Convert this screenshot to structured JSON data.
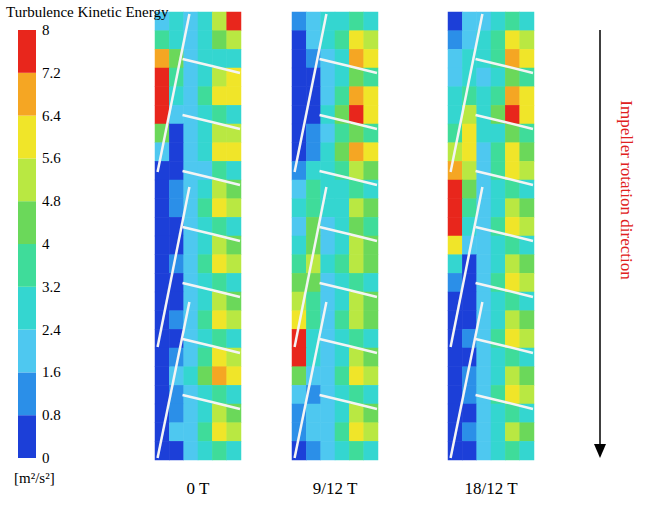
{
  "chart_data": {
    "type": "heatmap",
    "title": "Turbulence Kinetic Energy",
    "tick_labels": false,
    "annotation": "Impeller rotation direction",
    "colorbar": {
      "unit": "[m²/s²]",
      "range": [
        0,
        8
      ],
      "ticks": [
        0,
        0.8,
        1.6,
        2.4,
        3.2,
        4,
        4.8,
        5.6,
        6.4,
        7.2,
        8
      ],
      "colors": [
        "#1c3fd8",
        "#2b8fe8",
        "#4ec8f0",
        "#34d6d0",
        "#3fdc9a",
        "#6bd85a",
        "#b9e842",
        "#f0e529",
        "#f5a623",
        "#e8261c"
      ]
    },
    "panels": [
      {
        "label": "0 T",
        "cells": [
          [
            2.0,
            3.0,
            2.0,
            3.0,
            5.0,
            7.6
          ],
          [
            3.5,
            2.5,
            1.6,
            2.4,
            4.4,
            5.0
          ],
          [
            7.0,
            4.0,
            1.6,
            2.4,
            2.8,
            2.4
          ],
          [
            7.6,
            3.6,
            1.8,
            2.8,
            5.0,
            6.2
          ],
          [
            7.6,
            3.0,
            1.8,
            3.2,
            5.8,
            6.0
          ],
          [
            7.2,
            2.0,
            1.8,
            2.4,
            3.6,
            3.0
          ],
          [
            4.0,
            0.4,
            2.0,
            2.8,
            4.8,
            5.4
          ],
          [
            1.6,
            0.4,
            1.8,
            3.0,
            6.0,
            5.6
          ],
          [
            0.4,
            0.4,
            1.6,
            2.2,
            3.4,
            3.0
          ],
          [
            0.4,
            1.2,
            1.8,
            2.8,
            5.0,
            4.4
          ],
          [
            0.4,
            1.2,
            2.0,
            3.4,
            6.0,
            5.0
          ],
          [
            0.4,
            0.4,
            1.6,
            2.4,
            3.4,
            2.6
          ],
          [
            0.4,
            0.4,
            2.0,
            3.0,
            5.2,
            4.6
          ],
          [
            0.4,
            1.2,
            2.0,
            3.6,
            5.8,
            5.2
          ],
          [
            0.4,
            0.4,
            1.6,
            2.4,
            3.2,
            2.6
          ],
          [
            0.4,
            0.4,
            1.8,
            3.0,
            5.4,
            4.6
          ],
          [
            0.4,
            1.2,
            2.2,
            3.8,
            6.2,
            5.4
          ],
          [
            0.4,
            0.4,
            1.6,
            2.4,
            3.4,
            2.6
          ],
          [
            0.4,
            1.2,
            2.0,
            3.2,
            5.6,
            4.8
          ],
          [
            0.4,
            2.0,
            2.4,
            4.0,
            6.6,
            5.6
          ],
          [
            0.4,
            1.2,
            1.6,
            2.6,
            3.6,
            2.8
          ],
          [
            0.4,
            1.2,
            2.0,
            3.0,
            5.0,
            4.4
          ],
          [
            0.4,
            1.6,
            2.2,
            3.4,
            5.6,
            5.0
          ],
          [
            0.4,
            0.4,
            1.6,
            2.4,
            3.2,
            2.8
          ]
        ]
      },
      {
        "label": "9/12 T",
        "cells": [
          [
            1.2,
            1.6,
            2.4,
            3.0,
            3.4,
            3.0
          ],
          [
            0.4,
            1.6,
            2.4,
            3.6,
            5.8,
            4.8
          ],
          [
            0.4,
            1.2,
            2.0,
            3.0,
            6.6,
            5.6
          ],
          [
            0.4,
            0.4,
            1.6,
            2.8,
            4.0,
            3.4
          ],
          [
            0.4,
            0.4,
            2.0,
            3.6,
            6.8,
            5.6
          ],
          [
            0.4,
            0.4,
            2.4,
            4.4,
            7.4,
            6.0
          ],
          [
            0.4,
            1.2,
            2.0,
            3.2,
            4.6,
            3.6
          ],
          [
            0.4,
            1.2,
            2.4,
            4.0,
            7.0,
            5.8
          ],
          [
            1.2,
            2.4,
            3.0,
            3.6,
            5.0,
            4.0
          ],
          [
            2.0,
            3.2,
            2.4,
            2.6,
            3.6,
            2.8
          ],
          [
            2.4,
            3.6,
            2.4,
            3.0,
            5.2,
            4.4
          ],
          [
            2.0,
            4.0,
            2.0,
            2.8,
            4.4,
            3.6
          ],
          [
            2.4,
            4.4,
            2.2,
            3.0,
            5.0,
            4.0
          ],
          [
            3.2,
            5.0,
            2.4,
            3.2,
            5.4,
            4.4
          ],
          [
            4.0,
            4.4,
            1.8,
            2.6,
            3.2,
            2.6
          ],
          [
            4.8,
            3.6,
            2.0,
            3.0,
            5.0,
            4.2
          ],
          [
            6.0,
            3.2,
            2.0,
            3.2,
            5.2,
            4.6
          ],
          [
            7.6,
            3.0,
            1.6,
            2.4,
            3.2,
            2.6
          ],
          [
            7.2,
            2.4,
            1.8,
            2.8,
            5.0,
            4.4
          ],
          [
            4.4,
            1.6,
            2.0,
            3.2,
            5.6,
            4.8
          ],
          [
            2.0,
            1.2,
            1.6,
            2.4,
            3.2,
            2.8
          ],
          [
            1.2,
            1.6,
            1.8,
            2.8,
            5.0,
            4.4
          ],
          [
            1.2,
            2.0,
            2.2,
            3.4,
            5.6,
            5.0
          ],
          [
            0.4,
            1.2,
            1.6,
            2.4,
            3.2,
            2.6
          ]
        ]
      },
      {
        "label": "18/12 T",
        "cells": [
          [
            0.4,
            1.6,
            2.0,
            2.6,
            3.6,
            3.0
          ],
          [
            1.2,
            2.0,
            2.4,
            3.6,
            5.8,
            5.0
          ],
          [
            1.6,
            2.4,
            2.4,
            3.4,
            6.4,
            5.8
          ],
          [
            2.0,
            3.0,
            2.0,
            3.0,
            4.4,
            3.6
          ],
          [
            2.4,
            3.6,
            2.4,
            3.6,
            6.8,
            6.0
          ],
          [
            2.4,
            4.8,
            2.8,
            4.0,
            7.4,
            6.2
          ],
          [
            3.2,
            5.6,
            2.4,
            3.0,
            4.4,
            3.4
          ],
          [
            4.8,
            6.0,
            2.2,
            3.2,
            5.6,
            4.6
          ],
          [
            6.4,
            5.2,
            2.0,
            3.4,
            6.0,
            5.0
          ],
          [
            7.6,
            4.4,
            1.8,
            2.6,
            3.4,
            2.8
          ],
          [
            7.6,
            3.6,
            1.8,
            3.0,
            5.2,
            4.4
          ],
          [
            7.4,
            2.8,
            2.0,
            3.4,
            5.8,
            4.8
          ],
          [
            5.6,
            1.6,
            1.6,
            2.4,
            3.2,
            2.6
          ],
          [
            2.4,
            0.4,
            1.8,
            3.0,
            5.0,
            4.2
          ],
          [
            1.2,
            0.4,
            2.0,
            3.4,
            5.6,
            4.8
          ],
          [
            0.4,
            0.4,
            1.6,
            2.4,
            3.2,
            2.6
          ],
          [
            0.4,
            0.4,
            1.8,
            3.0,
            5.2,
            4.4
          ],
          [
            0.4,
            1.2,
            2.0,
            3.4,
            5.8,
            5.0
          ],
          [
            0.4,
            0.4,
            1.6,
            2.4,
            3.2,
            2.6
          ],
          [
            0.4,
            1.2,
            1.8,
            3.0,
            5.0,
            4.4
          ],
          [
            0.4,
            1.2,
            2.0,
            3.4,
            5.8,
            5.0
          ],
          [
            0.4,
            0.4,
            1.6,
            2.4,
            3.2,
            2.6
          ],
          [
            0.4,
            1.2,
            1.8,
            3.0,
            5.0,
            4.4
          ],
          [
            0.4,
            0.4,
            1.6,
            2.4,
            3.4,
            2.8
          ]
        ]
      }
    ]
  }
}
